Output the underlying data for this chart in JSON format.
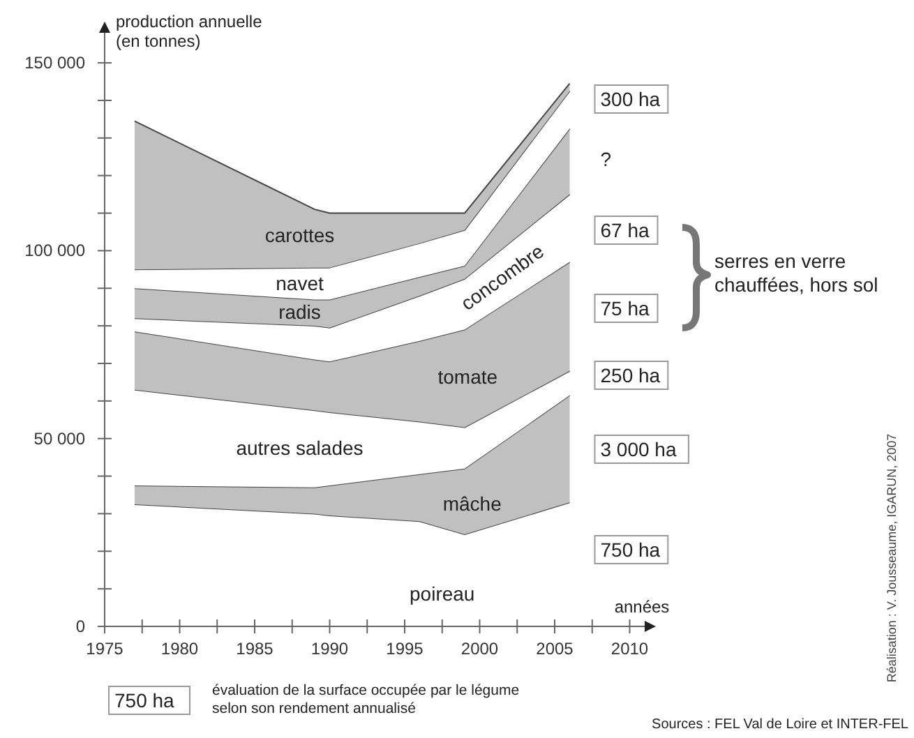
{
  "chart_data": {
    "type": "area",
    "stacked": true,
    "xlabel": "années",
    "ylabel": "production annuelle\n(en tonnes)",
    "x": [
      1977,
      1989,
      1990,
      1996,
      1999,
      2006
    ],
    "xlim": [
      1975,
      2011
    ],
    "ylim": [
      0,
      158000
    ],
    "xticks": [
      1975,
      {
        "value": 1977.5,
        "label": null
      },
      1980,
      {
        "value": 1982.5,
        "label": null
      },
      1985,
      {
        "value": 1987.5,
        "label": null
      },
      1990,
      {
        "value": 1992.5,
        "label": null
      },
      1995,
      {
        "value": 1997.5,
        "label": null
      },
      2000,
      {
        "value": 2002.5,
        "label": null
      },
      2005,
      {
        "value": 2007.5,
        "label": null
      },
      2010
    ],
    "yticks": [
      0,
      {
        "value": 10000,
        "label": null
      },
      {
        "value": 20000,
        "label": null
      },
      {
        "value": 30000,
        "label": null
      },
      {
        "value": 40000,
        "label": null
      },
      {
        "value": 50000,
        "label": "50 000"
      },
      {
        "value": 60000,
        "label": null
      },
      {
        "value": 70000,
        "label": null
      },
      {
        "value": 80000,
        "label": null
      },
      {
        "value": 90000,
        "label": null
      },
      {
        "value": 100000,
        "label": "100 000"
      },
      {
        "value": 110000,
        "label": null
      },
      {
        "value": 120000,
        "label": null
      },
      {
        "value": 130000,
        "label": null
      },
      {
        "value": 140000,
        "label": null
      },
      {
        "value": 150000,
        "label": "150 000"
      }
    ],
    "series": [
      {
        "name": "poireau",
        "color": "#ffffff",
        "values": [
          32500,
          30000,
          29500,
          28000,
          24500,
          33000
        ]
      },
      {
        "name": "mâche",
        "color": "#c0c0c0",
        "values": [
          5000,
          7000,
          8000,
          12500,
          17500,
          28500
        ]
      },
      {
        "name": "autres salades",
        "color": "#ffffff",
        "values": [
          25500,
          20500,
          19500,
          14000,
          11000,
          6500
        ]
      },
      {
        "name": "tomate",
        "color": "#c0c0c0",
        "values": [
          15500,
          13500,
          13500,
          21500,
          26000,
          29000
        ]
      },
      {
        "name": "concombre",
        "color": "#ffffff",
        "values": [
          3500,
          9000,
          9000,
          12000,
          13500,
          18000
        ]
      },
      {
        "name": "radis",
        "color": "#c0c0c0",
        "values": [
          8000,
          7000,
          7500,
          5000,
          3500,
          17500
        ]
      },
      {
        "name": "navet",
        "color": "#ffffff",
        "values": [
          5000,
          8500,
          8500,
          9000,
          9500,
          10000
        ]
      },
      {
        "name": "carottes",
        "color": "#c0c0c0",
        "values": [
          39500,
          15500,
          14500,
          8000,
          4500,
          2000
        ]
      }
    ],
    "annotations": [
      "300 ha",
      "?",
      "67 ha",
      "75 ha",
      "250 ha",
      "3 000 ha",
      "750 ha",
      "serres en verre\nchauffées, hors sol",
      "750 ha",
      "évaluation de la surface occupée par le légume\nselon son rendement annualisé",
      "Sources : FEL Val de Loire et INTER-FEL",
      "Réalisation : V. Jousseaume, IGARUN, 2007"
    ]
  }
}
